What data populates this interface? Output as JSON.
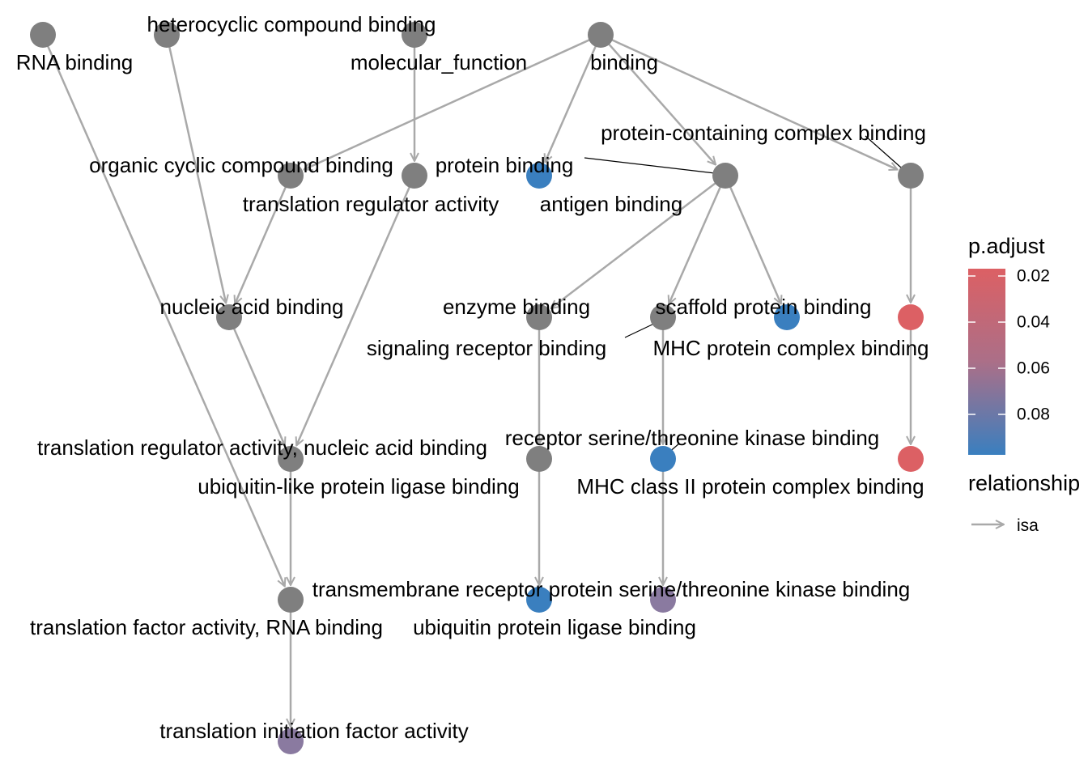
{
  "colors": {
    "grey": "#7f7f7f",
    "blue": "#3a7fbf",
    "purple": "#8a7aa0",
    "red": "#dc6064",
    "edge": "#a9a9a9"
  },
  "nodes": [
    {
      "id": "rna",
      "label": "RNA binding",
      "fill": "grey"
    },
    {
      "id": "hetero",
      "label": "heterocyclic compound binding",
      "fill": "grey"
    },
    {
      "id": "molfun",
      "label": "molecular_function",
      "fill": "grey"
    },
    {
      "id": "binding",
      "label": "binding",
      "fill": "grey"
    },
    {
      "id": "organic",
      "label": "organic cyclic compound binding",
      "fill": "grey"
    },
    {
      "id": "transreg",
      "label": "translation regulator activity",
      "fill": "grey"
    },
    {
      "id": "antigen",
      "label": "antigen binding",
      "fill": "blue"
    },
    {
      "id": "protein",
      "label": "protein binding",
      "fill": "grey"
    },
    {
      "id": "pccb",
      "label": "protein-containing complex binding",
      "fill": "grey"
    },
    {
      "id": "nucleic",
      "label": "nucleic acid binding",
      "fill": "grey"
    },
    {
      "id": "enzyme",
      "label": "enzyme binding",
      "fill": "grey"
    },
    {
      "id": "signaling",
      "label": "signaling receptor binding",
      "fill": "grey"
    },
    {
      "id": "scaffold",
      "label": "scaffold protein binding",
      "fill": "blue"
    },
    {
      "id": "mhc",
      "label": "MHC protein complex binding",
      "fill": "red"
    },
    {
      "id": "trna",
      "label": "translation regulator activity, nucleic acid binding",
      "fill": "grey"
    },
    {
      "id": "ubl",
      "label": "ubiquitin-like protein ligase binding",
      "fill": "grey"
    },
    {
      "id": "rstk",
      "label": "receptor serine/threonine kinase binding",
      "fill": "blue"
    },
    {
      "id": "mhc2",
      "label": "MHC class II protein complex binding",
      "fill": "red"
    },
    {
      "id": "tfa",
      "label": "translation factor activity, RNA binding",
      "fill": "grey"
    },
    {
      "id": "ubiq",
      "label": "ubiquitin protein ligase binding",
      "fill": "blue"
    },
    {
      "id": "tmrstk",
      "label": "transmembrane receptor protein serine/threonine kinase binding",
      "fill": "purple"
    },
    {
      "id": "tifa",
      "label": "translation initiation factor activity",
      "fill": "purple"
    }
  ],
  "edges": [
    [
      "rna",
      "tfa"
    ],
    [
      "hetero",
      "nucleic"
    ],
    [
      "molfun",
      "transreg"
    ],
    [
      "binding",
      "organic"
    ],
    [
      "binding",
      "antigen"
    ],
    [
      "binding",
      "protein"
    ],
    [
      "binding",
      "pccb"
    ],
    [
      "organic",
      "nucleic"
    ],
    [
      "transreg",
      "trna"
    ],
    [
      "nucleic",
      "trna"
    ],
    [
      "protein",
      "enzyme"
    ],
    [
      "protein",
      "signaling"
    ],
    [
      "protein",
      "scaffold"
    ],
    [
      "pccb",
      "mhc"
    ],
    [
      "mhc",
      "mhc2"
    ],
    [
      "enzyme",
      "ubl"
    ],
    [
      "signaling",
      "rstk"
    ],
    [
      "ubl",
      "ubiq"
    ],
    [
      "rstk",
      "tmrstk"
    ],
    [
      "trna",
      "tfa"
    ],
    [
      "tfa",
      "tifa"
    ]
  ],
  "legend": {
    "color_title": "p.adjust",
    "ticks": [
      "0.02",
      "0.04",
      "0.06",
      "0.08"
    ],
    "gradient_top": "#dc6064",
    "gradient_bottom": "#3a7fbf",
    "relationship_title": "relationship",
    "relationship_item": "isa"
  }
}
